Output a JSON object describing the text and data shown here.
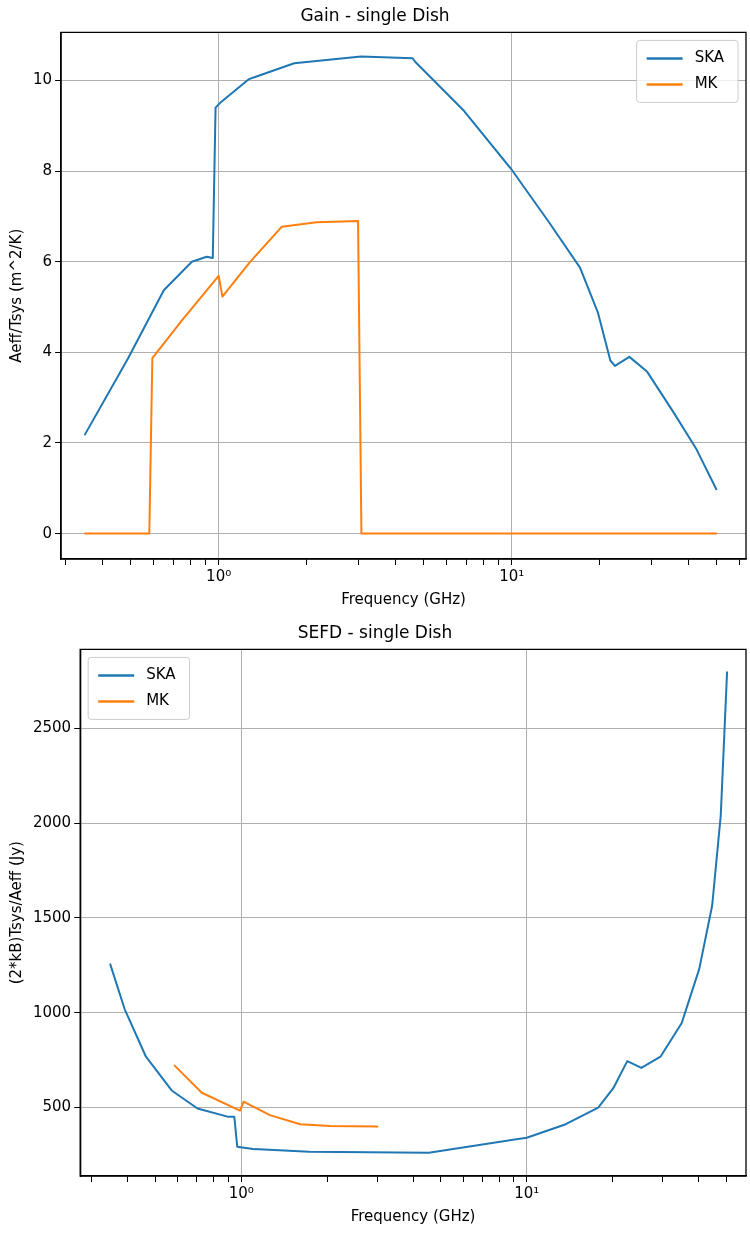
{
  "chart_data": [
    {
      "type": "line",
      "title": "Gain - single Dish",
      "xlabel": "Frequency (GHz)",
      "ylabel": "Aeff/Tsys (m^2/K)",
      "log": "x",
      "grid": true,
      "legend": "top right",
      "marker": "none",
      "line_style": "solid",
      "xlim": [
        0.29,
        63
      ],
      "ylim": [
        -0.56,
        11.06
      ],
      "xticks": [
        {
          "value": 0.3,
          "label": null
        },
        {
          "value": 0.4,
          "label": null
        },
        {
          "value": 0.5,
          "label": null
        },
        {
          "value": 0.6,
          "label": null
        },
        {
          "value": 0.7,
          "label": null
        },
        {
          "value": 0.8,
          "label": null
        },
        {
          "value": 0.9,
          "label": null
        },
        {
          "value": 1,
          "label": "10⁰"
        },
        {
          "value": 2,
          "label": null
        },
        {
          "value": 3,
          "label": null
        },
        {
          "value": 4,
          "label": null
        },
        {
          "value": 5,
          "label": null
        },
        {
          "value": 6,
          "label": null
        },
        {
          "value": 7,
          "label": null
        },
        {
          "value": 8,
          "label": null
        },
        {
          "value": 9,
          "label": null
        },
        {
          "value": 10,
          "label": "10¹"
        },
        {
          "value": 20,
          "label": null
        },
        {
          "value": 30,
          "label": null
        },
        {
          "value": 40,
          "label": null
        },
        {
          "value": 50,
          "label": null
        },
        {
          "value": 60,
          "label": null
        }
      ],
      "yticks": [
        0,
        2,
        4,
        6,
        8,
        10
      ],
      "series": [
        {
          "name": "SKA",
          "color": "#1f77b4",
          "x": [
            0.35,
            0.49,
            0.65,
            0.81,
            0.91,
            0.955,
            0.976,
            1.01,
            1.27,
            1.81,
            3.06,
            4.59,
            4.7,
            6.87,
            10,
            13.4,
            17.1,
            19.7,
            21.7,
            22.5,
            25.2,
            29.0,
            35.7,
            42.7,
            49.9
          ],
          "values": [
            2.19,
            3.86,
            5.37,
            6.0,
            6.11,
            6.08,
            9.4,
            9.5,
            10.03,
            10.38,
            10.53,
            10.49,
            10.4,
            9.33,
            8.03,
            6.87,
            5.87,
            4.87,
            3.82,
            3.7,
            3.9,
            3.57,
            2.67,
            1.86,
            0.98
          ]
        },
        {
          "name": "MK",
          "color": "#ff7f0e",
          "x": [
            0.35,
            0.58,
            0.594,
            0.753,
            1.0,
            1.03,
            1.27,
            1.64,
            2.16,
            2.99,
            3.07,
            49.9
          ],
          "values": [
            0,
            0,
            3.87,
            4.72,
            5.69,
            5.23,
            5.97,
            6.77,
            6.87,
            6.9,
            0,
            0
          ]
        }
      ]
    },
    {
      "type": "line",
      "title": "SEFD - single Dish",
      "xlabel": "Frequency (GHz)",
      "ylabel": "(2*kB)Tsys/Aeff (Jy)",
      "log": "x",
      "grid": true,
      "legend": "top left",
      "marker": "none",
      "line_style": "solid",
      "xlim": [
        0.273,
        58.6
      ],
      "ylim": [
        139,
        2916
      ],
      "xticks": [
        {
          "value": 0.3,
          "label": null
        },
        {
          "value": 0.4,
          "label": null
        },
        {
          "value": 0.5,
          "label": null
        },
        {
          "value": 0.6,
          "label": null
        },
        {
          "value": 0.7,
          "label": null
        },
        {
          "value": 0.8,
          "label": null
        },
        {
          "value": 0.9,
          "label": null
        },
        {
          "value": 1,
          "label": "10⁰"
        },
        {
          "value": 2,
          "label": null
        },
        {
          "value": 3,
          "label": null
        },
        {
          "value": 4,
          "label": null
        },
        {
          "value": 5,
          "label": null
        },
        {
          "value": 6,
          "label": null
        },
        {
          "value": 7,
          "label": null
        },
        {
          "value": 8,
          "label": null
        },
        {
          "value": 9,
          "label": null
        },
        {
          "value": 10,
          "label": "10¹"
        },
        {
          "value": 20,
          "label": null
        },
        {
          "value": 30,
          "label": null
        },
        {
          "value": 40,
          "label": null
        },
        {
          "value": 50,
          "label": null
        }
      ],
      "yticks": [
        500,
        1000,
        1500,
        2000,
        2500
      ],
      "series": [
        {
          "name": "SKA",
          "color": "#1f77b4",
          "x": [
            0.348,
            0.391,
            0.464,
            0.571,
            0.703,
            0.896,
            0.946,
            0.969,
            1.1,
            1.73,
            4.54,
            10,
            13.7,
            17.8,
            20.1,
            22.5,
            25.2,
            29.4,
            34.9,
            40.2,
            44.6,
            47.8,
            50.3
          ],
          "values": [
            1255,
            1018,
            768,
            590,
            495,
            452,
            452,
            293,
            281,
            267,
            262,
            341,
            412,
            500,
            602,
            745,
            709,
            768,
            946,
            1231,
            1564,
            2039,
            2795
          ]
        },
        {
          "name": "MK",
          "color": "#ff7f0e",
          "x": [
            0.585,
            0.728,
            0.99,
            1.02,
            1.26,
            1.61,
            2.05,
            3.0
          ],
          "values": [
            721,
            578,
            484,
            531,
            460,
            412,
            403,
            400
          ]
        }
      ]
    }
  ]
}
